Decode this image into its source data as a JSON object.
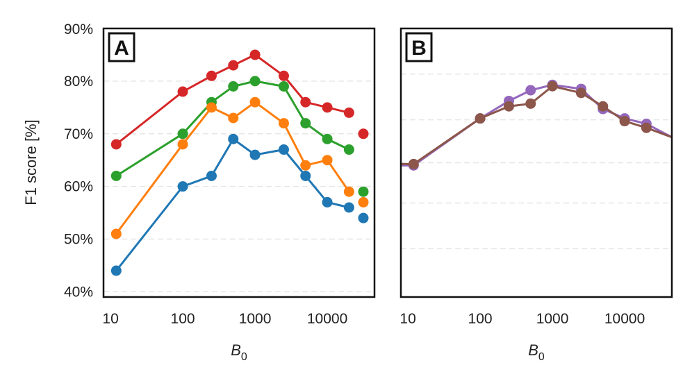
{
  "chart_data": [
    {
      "panel": "A",
      "type": "line",
      "xscale": "log",
      "xlabel_base": "B",
      "xlabel_sub": "0",
      "ylabel": "F1 score [%]",
      "xlim": [
        8,
        45000
      ],
      "ylim": [
        39,
        90
      ],
      "xticks": [
        10,
        100,
        1000,
        10000
      ],
      "xtick_labels": [
        "10",
        "100",
        "1000",
        "10000"
      ],
      "yticks": [
        40,
        50,
        60,
        70,
        80,
        90
      ],
      "ytick_labels": [
        "40%",
        "50%",
        "60%",
        "70%",
        "80%",
        "90%"
      ],
      "grid": "y-dashed",
      "x": [
        12,
        100,
        250,
        500,
        1000,
        2500,
        5000,
        10000,
        20000
      ],
      "extra_x": 45000,
      "series": [
        {
          "color": "#d62728",
          "values": [
            68,
            78,
            81,
            83,
            85,
            81,
            76,
            75,
            74
          ],
          "extra_value": 70
        },
        {
          "color": "#2ca02c",
          "values": [
            62,
            70,
            76,
            79,
            80,
            79,
            72,
            69,
            67
          ],
          "extra_value": 59
        },
        {
          "color": "#ff7f0e",
          "values": [
            51,
            68,
            75,
            73,
            76,
            72,
            64,
            65,
            59
          ],
          "extra_value": 57
        },
        {
          "color": "#1f77b4",
          "values": [
            44,
            60,
            62,
            69,
            66,
            67,
            62,
            57,
            56
          ],
          "extra_value": 54
        }
      ]
    },
    {
      "panel": "B",
      "type": "line",
      "xscale": "log",
      "xlabel_base": "B",
      "xlabel_sub": "0",
      "xlim": [
        8,
        45000
      ],
      "ylim": [
        0,
        1
      ],
      "xticks": [
        10,
        100,
        1000,
        10000
      ],
      "xtick_labels": [
        "10",
        "100",
        "1000",
        "10000"
      ],
      "gridlines": [
        0.18,
        0.35,
        0.5,
        0.66,
        0.83
      ],
      "grid": "y-dashed",
      "x": [
        8,
        12,
        100,
        250,
        500,
        1000,
        2500,
        5000,
        10000,
        20000,
        45000
      ],
      "series": [
        {
          "color": "#9467bd",
          "values": [
            0.49,
            0.49,
            0.665,
            0.73,
            0.77,
            0.79,
            0.775,
            0.7,
            0.665,
            0.645,
            0.595
          ]
        },
        {
          "color": "#8c564b",
          "values": [
            0.495,
            0.495,
            0.665,
            0.71,
            0.72,
            0.785,
            0.76,
            0.71,
            0.655,
            0.63,
            0.595
          ]
        }
      ]
    }
  ]
}
